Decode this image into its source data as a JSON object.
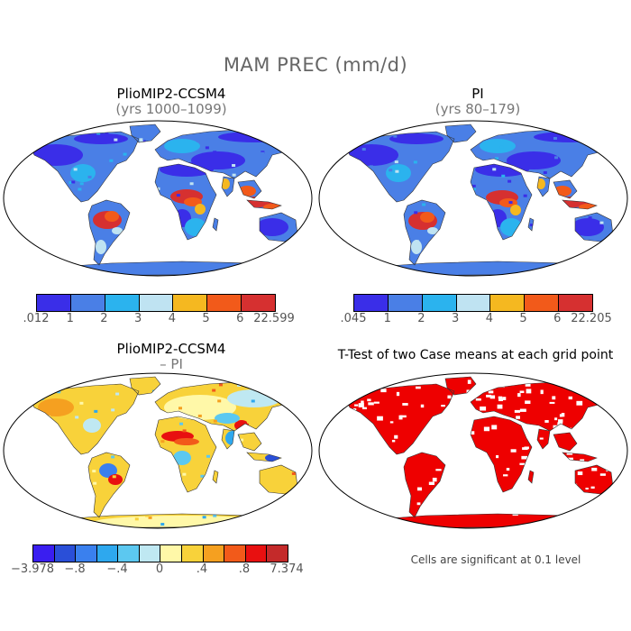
{
  "figure": {
    "title": "MAM PREC (mm/d)"
  },
  "panels": [
    {
      "title": "PlioMIP2-CCSM4",
      "subtitle": "(yrs 1000–1099)",
      "colorbar": {
        "labels": [
          ".012",
          "1",
          "2",
          "3",
          "4",
          "5",
          "6",
          "22.599"
        ],
        "colors": [
          "#3a2ee8",
          "#4a7fe6",
          "#2bb3ee",
          "#bfe3f2",
          "#f5b820",
          "#f25a1a",
          "#d63030"
        ]
      }
    },
    {
      "title": "PI",
      "subtitle": "(yrs 80–179)",
      "colorbar": {
        "labels": [
          ".045",
          "1",
          "2",
          "3",
          "4",
          "5",
          "6",
          "22.205"
        ],
        "colors": [
          "#3a2ee8",
          "#4a7fe6",
          "#2bb3ee",
          "#bfe3f2",
          "#f5b820",
          "#f25a1a",
          "#d63030"
        ]
      }
    },
    {
      "title": "PlioMIP2-CCSM4",
      "subtitle": "– PI",
      "colorbar": {
        "labels": [
          "−3.978",
          "−.8",
          "−.4",
          "0",
          ".4",
          ".8",
          "7.374"
        ],
        "colors": [
          "#3a1ef0",
          "#2a4fd8",
          "#3a80ee",
          "#2ea8ee",
          "#5cc8f0",
          "#bfe8f2",
          "#fff8a8",
          "#f8d23a",
          "#f5a020",
          "#f25a1a",
          "#e81010",
          "#c42a2a"
        ]
      }
    },
    {
      "title": "T-Test of two Case means at each grid point",
      "note": "Cells are significant at 0.1 level",
      "colors": {
        "significant": "#ee0000"
      }
    }
  ]
}
